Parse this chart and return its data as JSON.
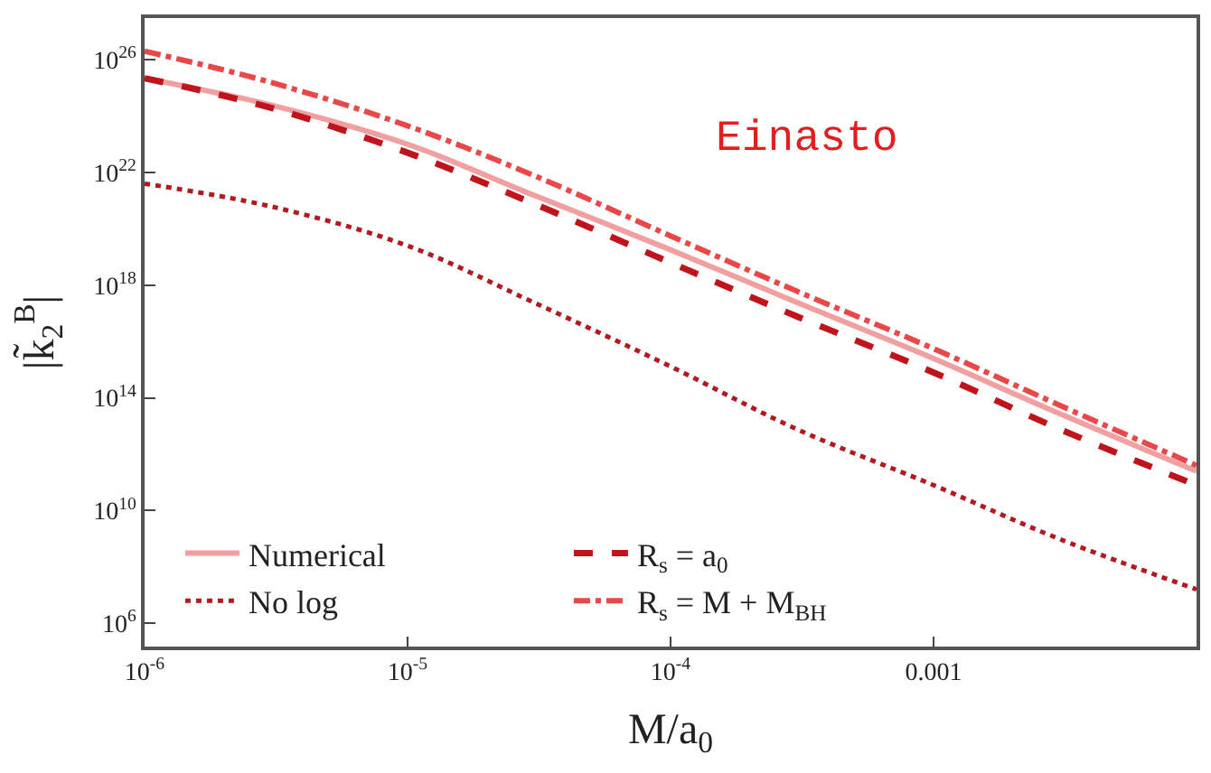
{
  "chart_data": {
    "type": "line",
    "xlabel": "M/a$_{0}$",
    "ylabel": "|k̃$_{2}$$^{B}$|",
    "log": "xy",
    "legend": "bottom",
    "marker": "none",
    "x": [
      1e-06,
      3e-06,
      1e-05,
      3e-05,
      0.0001,
      0.0003,
      0.001,
      0.003,
      0.01
    ],
    "xlim": [
      1e-06,
      0.01
    ],
    "ylim": [
      150000.0,
      3e+27
    ],
    "xticks": [
      {
        "value": 1e-06,
        "label": "10$^{-6}$"
      },
      {
        "value": 1e-05,
        "label": "10$^{-5}$"
      },
      {
        "value": 0.0001,
        "label": "10$^{-4}$"
      },
      {
        "value": 0.001,
        "label": "0.001"
      }
    ],
    "yticks": [
      {
        "value": 1000000.0,
        "label": "10$^{6}$"
      },
      {
        "value": 10000000000.0,
        "label": "10$^{10}$"
      },
      {
        "value": 100000000000000.0,
        "label": "10$^{14}$"
      },
      {
        "value": 1e+18,
        "label": "10$^{18}$"
      },
      {
        "value": 1e+22,
        "label": "10$^{22}$"
      },
      {
        "value": 1e+26,
        "label": "10$^{26}$"
      }
    ],
    "series": [
      {
        "name": "Numerical",
        "color": "#f0a0a0",
        "line_style": "solid",
        "values": [
          2.2e+25,
          2.5e+24,
          1e+23,
          1.6e+21,
          1.8e+19,
          2.5e+17,
          2500000000000000.0,
          28000000000000.0,
          250000000000.0
        ]
      },
      {
        "name": "R$_{s}$ = a$_{0}$",
        "color": "#c0141c",
        "line_style": "dashed",
        "values": [
          2.2e+25,
          2e+24,
          5e+22,
          8e+20,
          6.3e+18,
          8e+16,
          800000000000000.0,
          8000000000000.0,
          80000000000.0
        ]
      },
      {
        "name": "No log",
        "color": "#b01a20",
        "line_style": "dotted",
        "values": [
          4e+21,
          6.3e+20,
          2.5e+19,
          2.5e+17,
          1300000000000000.0,
          8000000000000.0,
          80000000000.0,
          1000000000.0,
          16000000.0
        ]
      },
      {
        "name": "R$_{s}$ = M + M$_{BH}$",
        "color": "#e84848",
        "line_style": "dashdot",
        "values": [
          2e+26,
          1.6e+25,
          4.5e+23,
          8e+21,
          5.6e+19,
          6.3e+17,
          5600000000000000.0,
          56000000000000.0,
          400000000000.0
        ]
      }
    ],
    "annotations": [
      "Einasto"
    ]
  }
}
